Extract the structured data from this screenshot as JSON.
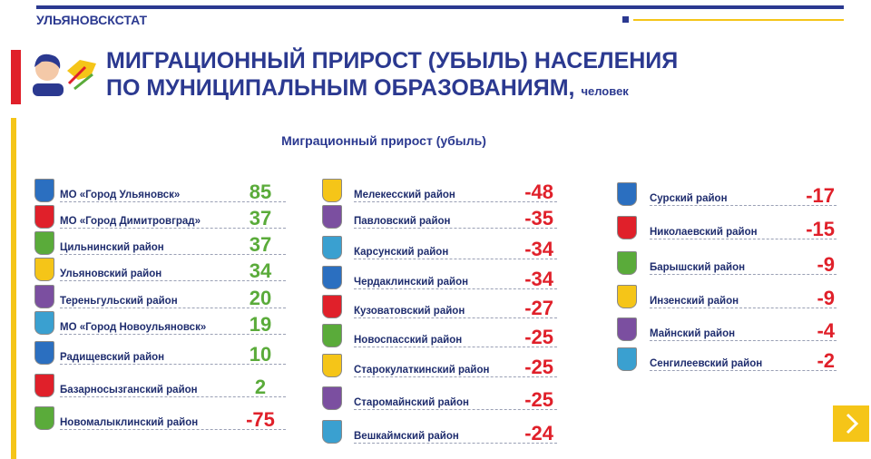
{
  "header": {
    "org": "УЛЬЯНОВСКСТАТ",
    "title_line1": "МИГРАЦИОННЫЙ ПРИРОСТ (УБЫЛЬ) НАСЕЛЕНИЯ",
    "title_line2": "ПО МУНИЦИПАЛЬНЫМ ОБРАЗОВАНИЯМ,",
    "unit": "человек",
    "subtitle": "Миграционный прирост (убыль)"
  },
  "columns": [
    [
      {
        "name": "МО «Город Ульяновск»",
        "value": 85
      },
      {
        "name": "МО «Город Димитровград»",
        "value": 37
      },
      {
        "name": "Цильнинский район",
        "value": 37
      },
      {
        "name": "Ульяновский район",
        "value": 34
      },
      {
        "name": "Тереньгульский район",
        "value": 20
      },
      {
        "name": "МО «Город Новоульяновск»",
        "value": 19
      },
      {
        "name": "Радищевский район",
        "value": 10
      },
      {
        "name": "Базарносызганский район",
        "value": 2
      },
      {
        "name": "Новомалыклинский район",
        "value": -75
      }
    ],
    [
      {
        "name": "Мелекесский район",
        "value": -48
      },
      {
        "name": "Павловский район",
        "value": -35
      },
      {
        "name": "Карсунский район",
        "value": -34
      },
      {
        "name": "Чердаклинский район",
        "value": -34
      },
      {
        "name": "Кузоватовский район",
        "value": -27
      },
      {
        "name": "Новоспасский район",
        "value": -25
      },
      {
        "name": "Старокулаткинский район",
        "value": -25
      },
      {
        "name": "Старомайнский район",
        "value": -25
      },
      {
        "name": "Вешкаймский район",
        "value": -24
      }
    ],
    [
      {
        "name": "Сурский район",
        "value": -17
      },
      {
        "name": "Николаевский район",
        "value": -15
      },
      {
        "name": "Барышский район",
        "value": -9
      },
      {
        "name": "Инзенский район",
        "value": -9
      },
      {
        "name": "Майнский район",
        "value": -4
      },
      {
        "name": "Сенгилеевский район",
        "value": -2
      }
    ]
  ]
}
